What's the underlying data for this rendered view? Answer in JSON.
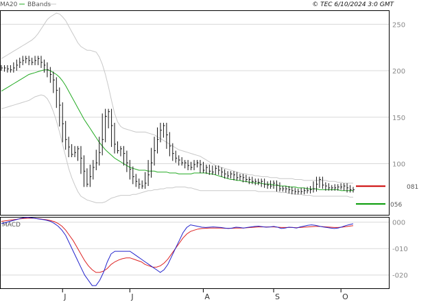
{
  "header": {
    "legend_ma20": "MA20",
    "legend_bbands": "BBands",
    "copyright": "© TEC 6/10/2024 3:0 GMT"
  },
  "colors": {
    "price": "#111111",
    "ma20": "#22aa22",
    "bbands": "#c8c8c8",
    "macd": "#2222cc",
    "signal": "#dd2222",
    "grid": "#d8d8d8",
    "frame": "#000000",
    "marker_red": "#cc0000",
    "marker_green": "#009900"
  },
  "markers": {
    "red_label": "081",
    "red_value": 81,
    "green_label": "056",
    "green_value": 56
  },
  "chart_data": [
    {
      "type": "line",
      "panel": "price",
      "x_labels": [
        "J",
        "J",
        "A",
        "S",
        "O"
      ],
      "x_label_index": [
        20,
        42,
        66,
        89,
        111
      ],
      "ylim": [
        45,
        265
      ],
      "yticks": [
        100,
        150,
        200,
        250
      ],
      "ytick_labels": [
        "100",
        "150",
        "200",
        "250"
      ],
      "grid": true,
      "series": [
        {
          "name": "MA20",
          "values": [
            178,
            180,
            182,
            184,
            186,
            188,
            190,
            192,
            194,
            196,
            197,
            198,
            199,
            200,
            201,
            201,
            200,
            198,
            196,
            193,
            189,
            184,
            178,
            172,
            166,
            160,
            154,
            148,
            143,
            138,
            133,
            128,
            123,
            119,
            115,
            112,
            109,
            106,
            104,
            102,
            100,
            98,
            96,
            95,
            94,
            93,
            93,
            93,
            92,
            92,
            92,
            91,
            91,
            91,
            91,
            90,
            90,
            90,
            89,
            89,
            89,
            89,
            89,
            90,
            90,
            90,
            90,
            90,
            89,
            89,
            88,
            87,
            86,
            85,
            84,
            83,
            83,
            82,
            82,
            81,
            81,
            80,
            80,
            79,
            79,
            79,
            78,
            78,
            78,
            77,
            77,
            76,
            76,
            76,
            75,
            75,
            75,
            74,
            74,
            74,
            73,
            73,
            73,
            73,
            72,
            72,
            72,
            72,
            72,
            72,
            72,
            71,
            71,
            71,
            71,
            71
          ]
        },
        {
          "name": "BBands upper",
          "values": [
            213,
            215,
            217,
            219,
            221,
            223,
            225,
            227,
            229,
            231,
            233,
            236,
            240,
            245,
            250,
            255,
            258,
            260,
            262,
            261,
            258,
            254,
            248,
            242,
            236,
            230,
            226,
            224,
            222,
            222,
            221,
            220,
            215,
            207,
            196,
            183,
            168,
            154,
            145,
            140,
            138,
            137,
            136,
            135,
            134,
            134,
            134,
            134,
            133,
            132,
            131,
            129,
            127,
            125,
            123,
            121,
            119,
            117,
            115,
            114,
            113,
            112,
            111,
            110,
            109,
            108,
            106,
            104,
            102,
            100,
            98,
            97,
            96,
            95,
            94,
            93,
            92,
            91,
            90,
            89,
            89,
            88,
            88,
            87,
            87,
            86,
            86,
            86,
            85,
            85,
            85,
            84,
            84,
            84,
            84,
            84,
            83,
            83,
            83,
            82,
            82,
            82,
            82,
            82,
            82,
            82,
            82,
            81,
            81,
            81,
            80,
            80,
            79,
            79,
            79,
            79
          ]
        },
        {
          "name": "BBands lower",
          "values": [
            159,
            160,
            161,
            162,
            163,
            164,
            165,
            166,
            167,
            168,
            170,
            172,
            173,
            174,
            173,
            170,
            164,
            156,
            146,
            134,
            121,
            108,
            95,
            85,
            77,
            70,
            65,
            63,
            61,
            60,
            59,
            58,
            58,
            58,
            59,
            61,
            63,
            64,
            65,
            66,
            66,
            66,
            66,
            67,
            67,
            68,
            69,
            70,
            71,
            71,
            72,
            72,
            73,
            73,
            74,
            74,
            74,
            75,
            75,
            75,
            75,
            74,
            74,
            73,
            72,
            71,
            71,
            71,
            71,
            71,
            71,
            71,
            71,
            71,
            71,
            71,
            71,
            71,
            71,
            71,
            71,
            71,
            71,
            71,
            70,
            70,
            70,
            70,
            70,
            70,
            70,
            69,
            69,
            69,
            68,
            68,
            67,
            67,
            67,
            66,
            66,
            66,
            65,
            65,
            65,
            65,
            65,
            65,
            65,
            65,
            65,
            65,
            65,
            65,
            64,
            64
          ]
        },
        {
          "name": "Close",
          "values": [
            203,
            203,
            202,
            201,
            203,
            206,
            209,
            211,
            213,
            211,
            209,
            211,
            213,
            209,
            206,
            201,
            196,
            190,
            179,
            163,
            143,
            126,
            118,
            110,
            112,
            116,
            106,
            92,
            78,
            86,
            96,
            101,
            112,
            126,
            151,
            156,
            141,
            121,
            114,
            116,
            111,
            101,
            94,
            86,
            81,
            78,
            76,
            79,
            88,
            101,
            114,
            126,
            136,
            141,
            131,
            119,
            111,
            106,
            104,
            101,
            101,
            98,
            96,
            99,
            101,
            99,
            93,
            96,
            92,
            91,
            95,
            93,
            91,
            89,
            87,
            89,
            88,
            85,
            86,
            85,
            83,
            83,
            81,
            81,
            80,
            81,
            78,
            77,
            76,
            79,
            77,
            73,
            73,
            73,
            72,
            71,
            70,
            70,
            70,
            71,
            71,
            72,
            73,
            78,
            83,
            77,
            76,
            74,
            74,
            74,
            75,
            75,
            76,
            74,
            72,
            72
          ]
        }
      ]
    },
    {
      "type": "line",
      "panel": "macd",
      "title": "MACD",
      "ylim": [
        -25,
        2
      ],
      "yticks": [
        0,
        -10,
        -20
      ],
      "ytick_labels": [
        "000",
        "-010",
        "-020"
      ],
      "grid": true,
      "series": [
        {
          "name": "MACD",
          "values": [
            -0.5,
            -0.2,
            0.2,
            0.6,
            1.0,
            1.4,
            1.7,
            1.8,
            1.6,
            1.4,
            1.2,
            1.0,
            0.7,
            0.3,
            -0.5,
            -1.5,
            -3,
            -5,
            -8,
            -11,
            -14,
            -17,
            -20,
            -22,
            -24,
            -24,
            -22,
            -19,
            -15,
            -12,
            -11,
            -11,
            -11,
            -11,
            -11,
            -12,
            -13,
            -14,
            -15,
            -16,
            -17,
            -18,
            -19,
            -18,
            -16,
            -13,
            -10,
            -7,
            -4,
            -2,
            -1,
            -1.3,
            -1.6,
            -1.9,
            -2.0,
            -1.9,
            -1.8,
            -1.9,
            -2.0,
            -2.2,
            -2.4,
            -2.2,
            -1.9,
            -2.0,
            -2.2,
            -2.0,
            -1.8,
            -1.6,
            -1.5,
            -1.7,
            -1.9,
            -1.8,
            -1.6,
            -1.9,
            -2.4,
            -2.2,
            -1.9,
            -2.0,
            -2.2,
            -1.8,
            -1.5,
            -1.2,
            -1.0,
            -1.2,
            -1.5,
            -1.8,
            -2.0,
            -2.2,
            -2.4,
            -2.2,
            -1.8,
            -1.3,
            -0.9,
            -0.6
          ]
        },
        {
          "name": "Signal",
          "values": [
            0.3,
            0.5,
            0.7,
            0.9,
            1.1,
            1.3,
            1.4,
            1.5,
            1.5,
            1.4,
            1.3,
            1.1,
            0.9,
            0.6,
            0.2,
            -0.5,
            -1.5,
            -3,
            -5,
            -7,
            -9.5,
            -12,
            -14.5,
            -16.5,
            -18,
            -19,
            -19,
            -18.5,
            -17.5,
            -16,
            -15,
            -14.3,
            -13.8,
            -13.5,
            -13.5,
            -14,
            -14.5,
            -15,
            -16,
            -16.5,
            -17,
            -17,
            -16.5,
            -15.5,
            -14,
            -12,
            -10,
            -8,
            -6,
            -4.5,
            -3.5,
            -3,
            -2.6,
            -2.4,
            -2.3,
            -2.2,
            -2.2,
            -2.2,
            -2.2,
            -2.3,
            -2.3,
            -2.3,
            -2.2,
            -2.2,
            -2.2,
            -2.1,
            -2.0,
            -1.9,
            -1.8,
            -1.8,
            -1.8,
            -1.8,
            -1.8,
            -1.9,
            -2.0,
            -2.0,
            -2.0,
            -2.0,
            -2.1,
            -2.0,
            -1.9,
            -1.8,
            -1.7,
            -1.6,
            -1.6,
            -1.7,
            -1.8,
            -1.9,
            -2.0,
            -2.0,
            -1.9,
            -1.7,
            -1.5,
            -1.3
          ]
        }
      ]
    }
  ]
}
